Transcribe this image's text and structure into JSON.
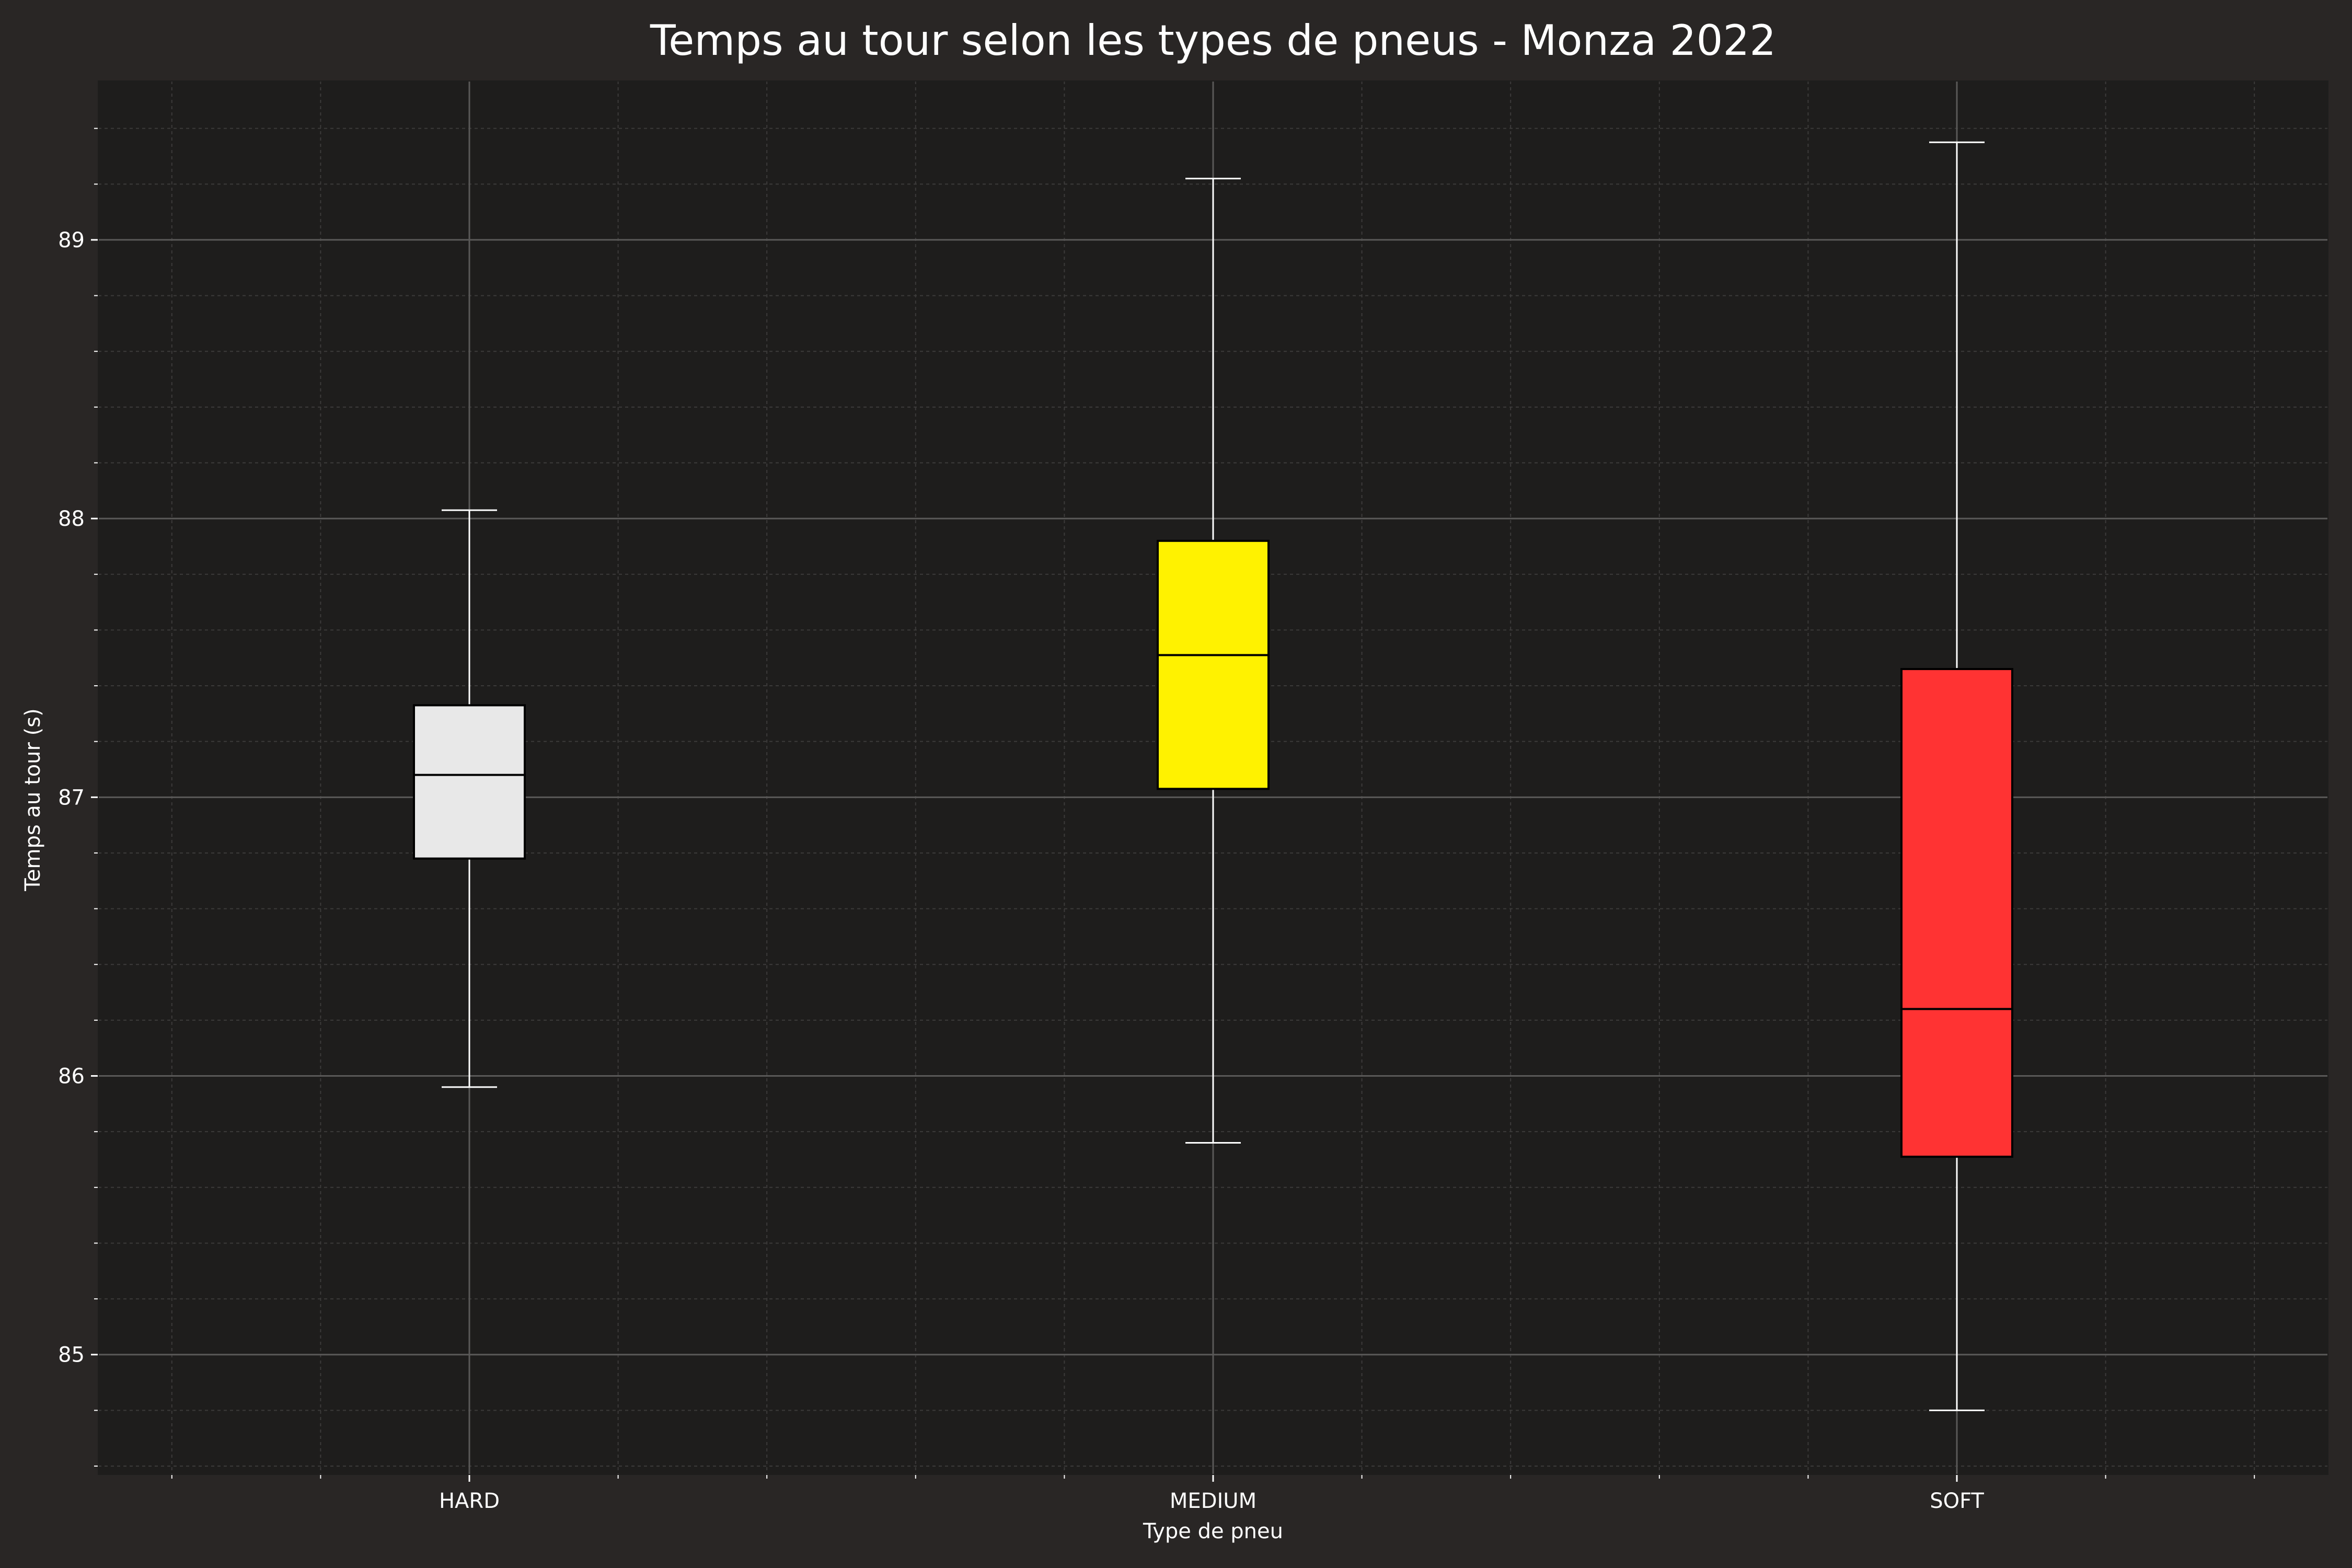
{
  "chart_data": {
    "type": "box",
    "title": "Temps au tour selon les types de pneus - Monza 2022",
    "xlabel": "Type de pneu",
    "ylabel": "Temps au tour (s)",
    "ylim": [
      84.57,
      89.57
    ],
    "yticks": [
      "85",
      "86",
      "87",
      "88",
      "89"
    ],
    "grid": true,
    "categories": [
      "HARD",
      "MEDIUM",
      "SOFT"
    ],
    "boxes": [
      {
        "category": "HARD",
        "whisker_low": 85.96,
        "q1": 86.78,
        "median": 87.08,
        "q3": 87.33,
        "whisker_high": 88.03,
        "color": "#e8e8e8"
      },
      {
        "category": "MEDIUM",
        "whisker_low": 85.76,
        "q1": 87.03,
        "median": 87.51,
        "q3": 87.92,
        "whisker_high": 89.22,
        "color": "#fff200"
      },
      {
        "category": "SOFT",
        "whisker_low": 84.8,
        "q1": 85.71,
        "median": 86.24,
        "q3": 87.46,
        "whisker_high": 89.35,
        "color": "#ff3333"
      }
    ]
  },
  "colors": {
    "figure_background": "#292625",
    "plot_background": "#1e1d1c",
    "grid_major": "#5a5958",
    "grid_minor": "#3c3b3a",
    "text": "#ffffff",
    "whisker": "#ffffff",
    "box_edge": "#000000"
  }
}
